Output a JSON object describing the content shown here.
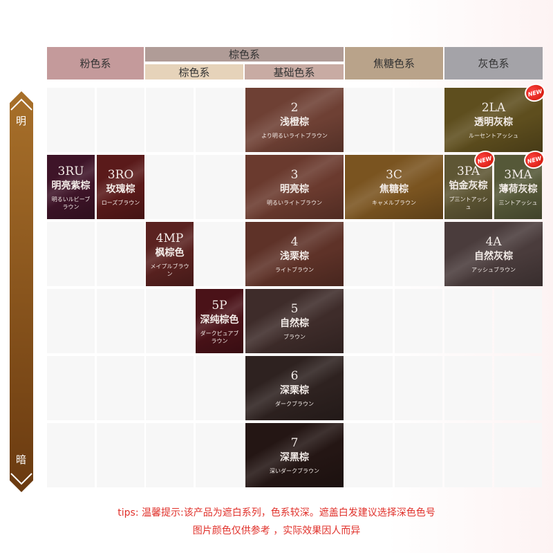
{
  "header": {
    "pink": "粉色系",
    "brown": "棕色系",
    "brown_sub": "棕色系",
    "basic": "基础色系",
    "caramel": "焦糖色系",
    "gray": "灰色系",
    "colors": {
      "pink": "#c49a9b",
      "brown": "#b09c97",
      "brown_sub": "#e6d3ba",
      "basic": "#c8aba3",
      "caramel": "#b9a38a",
      "gray": "#a4a3a8"
    }
  },
  "scale": {
    "light": "明",
    "dark": "暗",
    "color": "#8a5418"
  },
  "new_badge": "NEW",
  "swatches": [
    {
      "code": "2",
      "name": "浅橙棕",
      "jp": "より明るいライトブラウン",
      "color": "#6e4034"
    },
    {
      "code": "2LA",
      "name": "透明灰棕",
      "jp": "ルーセントアッシュ",
      "color": "#5e4e1e",
      "new": true
    },
    {
      "code": "3RU",
      "name": "明亮紫棕",
      "jp": "明るいルビーブラウン",
      "color": "#3e1428"
    },
    {
      "code": "3RO",
      "name": "玫瑰棕",
      "jp": "ローズブラウン",
      "color": "#5a1a1a"
    },
    {
      "code": "3",
      "name": "明亮棕",
      "jp": "明るいライトブラウン",
      "color": "#6a3a2e"
    },
    {
      "code": "3C",
      "name": "焦糖棕",
      "jp": "キャメルブラウン",
      "color": "#7a5420"
    },
    {
      "code": "3PA",
      "name": "铂金灰棕",
      "jp": "プ三ントアッシュ",
      "color": "#5e5634",
      "new": true
    },
    {
      "code": "3MA",
      "name": "薄荷灰棕",
      "jp": "三ントアッシュ",
      "color": "#555838",
      "new": true
    },
    {
      "code": "4MP",
      "name": "枫棕色",
      "jp": "メイプルブラウン",
      "color": "#5a2220"
    },
    {
      "code": "4",
      "name": "浅栗棕",
      "jp": "ライトブラウン",
      "color": "#5e3228"
    },
    {
      "code": "4A",
      "name": "自然灰棕",
      "jp": "アッシュブラウン",
      "color": "#4a3c3c"
    },
    {
      "code": "5P",
      "name": "深纯棕色",
      "jp": "ダークピュアブラウン",
      "color": "#4a1218"
    },
    {
      "code": "5",
      "name": "自然棕",
      "jp": "ブラウン",
      "color": "#3e2c2a"
    },
    {
      "code": "6",
      "name": "深栗棕",
      "jp": "ダークブラウン",
      "color": "#2e2220"
    },
    {
      "code": "7",
      "name": "深黑棕",
      "jp": "深いダークブラウン",
      "color": "#241614"
    }
  ],
  "tips": {
    "line1": "tips: 温馨提示:该产品为遮白系列，色系较深。遮盖白发建议选择深色色号",
    "line2": "图片颜色仅供参考 ，实际效果因人而异"
  }
}
